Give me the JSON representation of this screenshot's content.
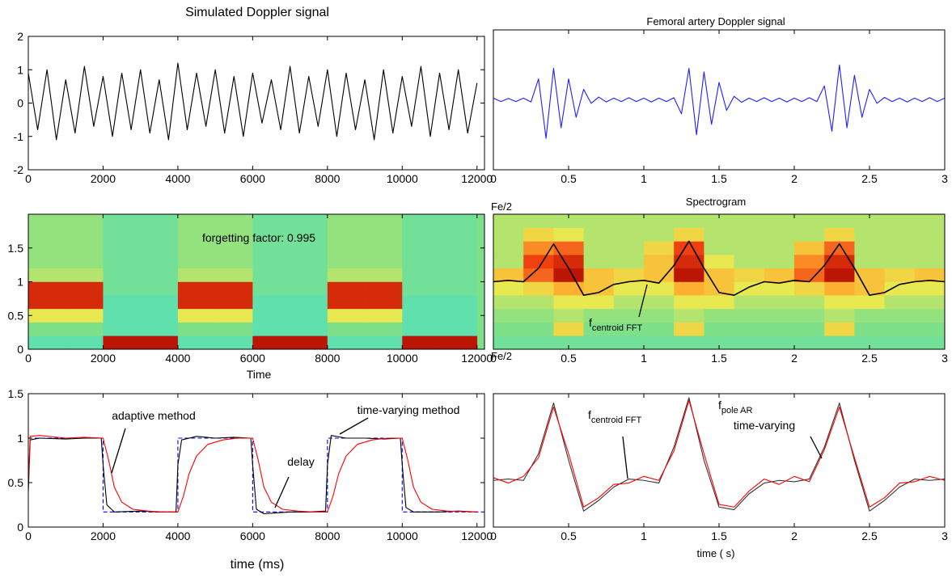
{
  "chart_data": [
    {
      "type": "line",
      "title": "Simulated Doppler signal",
      "xlim": [
        0,
        12200
      ],
      "xticks": [
        0,
        2000,
        4000,
        6000,
        8000,
        10000,
        12000
      ],
      "ylim": [
        -2,
        2
      ],
      "yticks": [
        -2,
        -1,
        0,
        1,
        2
      ],
      "series": [
        {
          "color": "#000000",
          "x": [
            0,
            250,
            500,
            750,
            1000,
            1250,
            1500,
            1750,
            2000,
            2250,
            2500,
            2750,
            3000,
            3250,
            3500,
            3750,
            4000,
            4250,
            4500,
            4750,
            5000,
            5250,
            5500,
            5750,
            6000,
            6250,
            6500,
            6750,
            7000,
            7250,
            7500,
            7750,
            8000,
            8250,
            8500,
            8750,
            9000,
            9250,
            9500,
            9750,
            10000,
            10250,
            10500,
            10750,
            11000,
            11250,
            11500,
            11750,
            12000
          ],
          "values": [
            0.9,
            -0.8,
            1.0,
            -1.1,
            0.7,
            -0.9,
            1.1,
            -0.7,
            0.8,
            -1.0,
            0.9,
            -0.8,
            1.0,
            -0.9,
            0.7,
            -1.1,
            1.2,
            -0.8,
            0.9,
            -0.7,
            1.0,
            -0.9,
            0.8,
            -1.0,
            0.9,
            -0.6,
            0.7,
            -0.8,
            1.1,
            -0.9,
            0.8,
            -0.7,
            1.0,
            -1.0,
            0.9,
            -0.8,
            0.7,
            -1.1,
            1.0,
            -0.9,
            0.8,
            -0.7,
            1.1,
            -1.0,
            0.9,
            -0.8,
            1.0,
            -0.9,
            0.6
          ]
        }
      ]
    },
    {
      "type": "line",
      "title": "Femoral artery Doppler signal",
      "xlim": [
        0,
        3
      ],
      "xticks": [
        0,
        0.5,
        1,
        1.5,
        2,
        2.5,
        3
      ],
      "ylim": [
        -2,
        2
      ],
      "series": [
        {
          "color": "#1f1fff",
          "x": [
            0,
            0.05,
            0.1,
            0.15,
            0.2,
            0.25,
            0.3,
            0.35,
            0.4,
            0.45,
            0.5,
            0.55,
            0.6,
            0.65,
            0.7,
            0.75,
            0.8,
            0.85,
            0.9,
            0.95,
            1,
            1.05,
            1.1,
            1.15,
            1.2,
            1.25,
            1.3,
            1.35,
            1.4,
            1.45,
            1.5,
            1.55,
            1.6,
            1.65,
            1.7,
            1.75,
            1.8,
            1.85,
            1.9,
            1.95,
            2,
            2.05,
            2.1,
            2.15,
            2.2,
            2.25,
            2.3,
            2.35,
            2.4,
            2.45,
            2.5,
            2.55,
            2.6,
            2.65,
            2.7,
            2.75,
            2.8,
            2.85,
            2.9,
            2.95,
            3
          ],
          "values": [
            0.05,
            -0.05,
            0.04,
            -0.05,
            0.05,
            -0.06,
            0.6,
            -1.1,
            0.9,
            -0.8,
            0.6,
            -0.5,
            0.3,
            -0.1,
            0.08,
            -0.06,
            0.05,
            -0.05,
            0.06,
            -0.05,
            0.05,
            -0.06,
            0.05,
            -0.05,
            0.06,
            -0.4,
            0.9,
            -1.0,
            0.8,
            -0.7,
            0.5,
            -0.3,
            0.1,
            -0.07,
            0.05,
            -0.05,
            0.06,
            -0.05,
            0.05,
            -0.06,
            0.05,
            -0.05,
            0.06,
            -0.05,
            0.4,
            -0.9,
            1.0,
            -0.8,
            0.7,
            -0.5,
            0.3,
            -0.1,
            0.07,
            -0.05,
            0.05,
            -0.06,
            0.05,
            -0.05,
            0.06,
            -0.05,
            0.05
          ]
        }
      ]
    },
    {
      "type": "heatmap",
      "xlabel": "Time",
      "xlim": [
        0,
        12200
      ],
      "xticks": [
        0,
        2000,
        4000,
        6000,
        8000,
        10000,
        12000
      ],
      "ylim": [
        0,
        2
      ],
      "yticks": [
        0,
        0.5,
        1,
        1.5
      ],
      "zlim": [
        0,
        1
      ],
      "annotations": [
        "forgetting factor: 0.995"
      ],
      "x_edges": [
        0,
        1000,
        2000,
        3000,
        4000,
        5000,
        6000,
        7000,
        8000,
        9000,
        10000,
        11000,
        12000
      ],
      "y_edges": [
        0,
        0.2,
        0.4,
        0.6,
        0.8,
        1.0,
        1.2,
        1.4,
        1.6,
        1.8,
        2.0
      ],
      "z": [
        [
          0.35,
          0.35,
          0.9,
          0.9,
          0.35,
          0.35,
          0.9,
          0.9,
          0.35,
          0.35,
          0.9,
          0.9
        ],
        [
          0.4,
          0.4,
          0.35,
          0.35,
          0.4,
          0.4,
          0.35,
          0.35,
          0.4,
          0.4,
          0.35,
          0.35
        ],
        [
          0.5,
          0.5,
          0.35,
          0.35,
          0.5,
          0.5,
          0.35,
          0.35,
          0.5,
          0.5,
          0.35,
          0.35
        ],
        [
          0.85,
          0.85,
          0.35,
          0.35,
          0.85,
          0.85,
          0.35,
          0.35,
          0.85,
          0.85,
          0.35,
          0.35
        ],
        [
          0.85,
          0.85,
          0.38,
          0.38,
          0.85,
          0.85,
          0.38,
          0.38,
          0.85,
          0.85,
          0.38,
          0.38
        ],
        [
          0.45,
          0.45,
          0.38,
          0.38,
          0.45,
          0.45,
          0.38,
          0.38,
          0.45,
          0.45,
          0.38,
          0.38
        ],
        [
          0.42,
          0.42,
          0.38,
          0.38,
          0.42,
          0.42,
          0.38,
          0.38,
          0.42,
          0.42,
          0.38,
          0.38
        ],
        [
          0.42,
          0.42,
          0.38,
          0.38,
          0.42,
          0.42,
          0.38,
          0.38,
          0.42,
          0.42,
          0.38,
          0.38
        ],
        [
          0.42,
          0.42,
          0.38,
          0.38,
          0.42,
          0.42,
          0.38,
          0.38,
          0.42,
          0.42,
          0.38,
          0.38
        ],
        [
          0.42,
          0.42,
          0.38,
          0.38,
          0.42,
          0.42,
          0.38,
          0.38,
          0.42,
          0.42,
          0.38,
          0.38
        ]
      ]
    },
    {
      "type": "heatmap",
      "title": "Spectrogram",
      "ylabel_top": "Fe/2",
      "ylabel_bottom": "Fe/2",
      "xlim": [
        0,
        3
      ],
      "xticks": [
        0,
        0.5,
        1,
        1.5,
        2,
        2.5,
        3
      ],
      "ylim": [
        0,
        1
      ],
      "zlim": [
        0,
        1
      ],
      "annotations": [
        {
          "text": "f",
          "sub": "centroid FFT"
        }
      ],
      "x_edges": [
        0,
        0.2,
        0.4,
        0.6,
        0.8,
        1.0,
        1.2,
        1.4,
        1.6,
        1.8,
        2.0,
        2.2,
        2.4,
        2.6,
        2.8,
        3.0
      ],
      "y_edges": [
        0,
        0.1,
        0.2,
        0.3,
        0.4,
        0.5,
        0.6,
        0.7,
        0.8,
        0.9,
        1.0
      ],
      "z": [
        [
          0.38,
          0.38,
          0.38,
          0.38,
          0.38,
          0.38,
          0.38,
          0.38,
          0.38,
          0.38,
          0.38,
          0.38,
          0.38,
          0.38,
          0.38
        ],
        [
          0.4,
          0.4,
          0.55,
          0.4,
          0.4,
          0.4,
          0.55,
          0.4,
          0.4,
          0.4,
          0.4,
          0.55,
          0.4,
          0.4,
          0.4
        ],
        [
          0.42,
          0.42,
          0.45,
          0.42,
          0.42,
          0.42,
          0.45,
          0.42,
          0.42,
          0.42,
          0.42,
          0.45,
          0.42,
          0.42,
          0.42
        ],
        [
          0.45,
          0.45,
          0.5,
          0.5,
          0.45,
          0.45,
          0.5,
          0.5,
          0.45,
          0.45,
          0.45,
          0.5,
          0.5,
          0.45,
          0.45
        ],
        [
          0.5,
          0.55,
          0.65,
          0.6,
          0.5,
          0.5,
          0.65,
          0.6,
          0.5,
          0.5,
          0.55,
          0.65,
          0.6,
          0.5,
          0.5
        ],
        [
          0.6,
          0.75,
          0.9,
          0.6,
          0.55,
          0.6,
          0.9,
          0.6,
          0.55,
          0.6,
          0.75,
          0.9,
          0.6,
          0.55,
          0.6
        ],
        [
          0.45,
          0.8,
          0.85,
          0.45,
          0.45,
          0.6,
          0.85,
          0.5,
          0.45,
          0.45,
          0.7,
          0.85,
          0.45,
          0.45,
          0.45
        ],
        [
          0.45,
          0.7,
          0.75,
          0.45,
          0.45,
          0.55,
          0.8,
          0.45,
          0.45,
          0.45,
          0.6,
          0.75,
          0.45,
          0.45,
          0.45
        ],
        [
          0.45,
          0.55,
          0.5,
          0.45,
          0.45,
          0.45,
          0.55,
          0.45,
          0.45,
          0.45,
          0.45,
          0.55,
          0.45,
          0.45,
          0.45
        ],
        [
          0.45,
          0.45,
          0.45,
          0.45,
          0.45,
          0.45,
          0.45,
          0.45,
          0.45,
          0.45,
          0.45,
          0.45,
          0.45,
          0.45,
          0.45
        ]
      ],
      "series": [
        {
          "color": "#000000",
          "x": [
            0,
            0.1,
            0.2,
            0.3,
            0.4,
            0.5,
            0.6,
            0.7,
            0.8,
            0.9,
            1.0,
            1.1,
            1.2,
            1.3,
            1.4,
            1.5,
            1.6,
            1.7,
            1.8,
            1.9,
            2.0,
            2.1,
            2.2,
            2.3,
            2.4,
            2.5,
            2.6,
            2.7,
            2.8,
            2.9,
            3.0
          ],
          "values": [
            0.5,
            0.51,
            0.5,
            0.6,
            0.78,
            0.6,
            0.4,
            0.42,
            0.48,
            0.5,
            0.51,
            0.49,
            0.62,
            0.8,
            0.6,
            0.42,
            0.4,
            0.46,
            0.5,
            0.49,
            0.51,
            0.5,
            0.62,
            0.78,
            0.6,
            0.4,
            0.42,
            0.48,
            0.5,
            0.51,
            0.5
          ]
        }
      ]
    },
    {
      "type": "line",
      "xlabel": "time (ms)",
      "xlim": [
        0,
        12200
      ],
      "xticks": [
        0,
        2000,
        4000,
        6000,
        8000,
        10000,
        12000
      ],
      "ylim": [
        0,
        1.5
      ],
      "yticks": [
        0,
        0.5,
        1,
        1.5
      ],
      "annotations": [
        "adaptive method",
        "delay",
        "time-varying method"
      ],
      "series": [
        {
          "color": "#0000ff",
          "dash": true,
          "x": [
            0,
            2000,
            2000,
            4000,
            4000,
            6000,
            6000,
            8000,
            8000,
            10000,
            10000,
            12200
          ],
          "values": [
            1,
            1,
            0.17,
            0.17,
            1,
            1,
            0.17,
            0.17,
            1,
            1,
            0.17,
            0.17
          ]
        },
        {
          "color": "#000000",
          "x": [
            0,
            50,
            300,
            1000,
            1500,
            1950,
            2000,
            2100,
            2300,
            3000,
            3500,
            3950,
            4000,
            4100,
            4500,
            5000,
            5500,
            5950,
            6000,
            6100,
            6300,
            7000,
            7500,
            7950,
            8000,
            8100,
            8500,
            9000,
            9500,
            9950,
            10000,
            10100,
            10300,
            11000,
            11500,
            12000
          ],
          "values": [
            0.4,
            0.98,
            1.0,
            0.99,
            1.0,
            1.0,
            0.7,
            0.25,
            0.17,
            0.18,
            0.17,
            0.17,
            0.7,
            0.98,
            1.02,
            1.0,
            1.01,
            1.0,
            0.7,
            0.2,
            0.15,
            0.17,
            0.17,
            0.18,
            0.7,
            1.03,
            1.0,
            1.0,
            0.99,
            1.0,
            0.7,
            0.22,
            0.17,
            0.17,
            0.18,
            0.17
          ]
        },
        {
          "color": "#ff0000",
          "x": [
            0,
            50,
            300,
            1000,
            1500,
            2000,
            2150,
            2300,
            2500,
            2800,
            3200,
            3600,
            4000,
            4150,
            4300,
            4500,
            4800,
            5200,
            5600,
            6000,
            6150,
            6300,
            6500,
            6800,
            7200,
            7600,
            8000,
            8150,
            8300,
            8500,
            8800,
            9200,
            9600,
            10000,
            10150,
            10300,
            10500,
            10800,
            11200,
            12000
          ],
          "values": [
            0.5,
            1.02,
            1.03,
            1.0,
            1.01,
            1.0,
            0.75,
            0.45,
            0.28,
            0.2,
            0.18,
            0.17,
            0.17,
            0.35,
            0.6,
            0.8,
            0.93,
            0.98,
            1.0,
            1.0,
            0.75,
            0.45,
            0.28,
            0.2,
            0.18,
            0.17,
            0.17,
            0.35,
            0.6,
            0.8,
            0.93,
            0.98,
            1.0,
            1.0,
            0.75,
            0.45,
            0.28,
            0.2,
            0.18,
            0.17
          ]
        }
      ]
    },
    {
      "type": "line",
      "xlabel": "time ( s)",
      "xlim": [
        0,
        3
      ],
      "xticks": [
        0,
        0.5,
        1,
        1.5,
        2,
        2.5,
        3
      ],
      "ylim": [
        0,
        1
      ],
      "annotations": [
        {
          "text": "f",
          "sub": "centroid FFT"
        },
        {
          "text": "f",
          "sub": "pole AR"
        },
        "time-varying"
      ],
      "series": [
        {
          "color": "#333333",
          "x": [
            0,
            0.1,
            0.2,
            0.3,
            0.4,
            0.5,
            0.6,
            0.7,
            0.8,
            0.9,
            1.0,
            1.1,
            1.2,
            1.3,
            1.4,
            1.5,
            1.6,
            1.7,
            1.8,
            1.9,
            2.0,
            2.1,
            2.2,
            2.3,
            2.4,
            2.5,
            2.6,
            2.7,
            2.8,
            2.9,
            3.0
          ],
          "values": [
            0.35,
            0.36,
            0.35,
            0.55,
            0.93,
            0.5,
            0.12,
            0.2,
            0.3,
            0.36,
            0.35,
            0.33,
            0.6,
            0.97,
            0.5,
            0.15,
            0.13,
            0.25,
            0.33,
            0.35,
            0.34,
            0.36,
            0.6,
            0.93,
            0.5,
            0.12,
            0.2,
            0.3,
            0.36,
            0.35,
            0.36
          ]
        },
        {
          "color": "#ff0000",
          "x": [
            0,
            0.1,
            0.2,
            0.3,
            0.4,
            0.5,
            0.6,
            0.7,
            0.8,
            0.9,
            1.0,
            1.1,
            1.2,
            1.3,
            1.4,
            1.5,
            1.6,
            1.7,
            1.8,
            1.9,
            2.0,
            2.1,
            2.2,
            2.3,
            2.4,
            2.5,
            2.6,
            2.7,
            2.8,
            2.9,
            3.0
          ],
          "values": [
            0.37,
            0.33,
            0.38,
            0.52,
            0.9,
            0.55,
            0.15,
            0.22,
            0.32,
            0.33,
            0.38,
            0.35,
            0.57,
            0.95,
            0.55,
            0.17,
            0.15,
            0.27,
            0.36,
            0.32,
            0.38,
            0.34,
            0.58,
            0.9,
            0.52,
            0.15,
            0.22,
            0.33,
            0.34,
            0.38,
            0.35
          ]
        }
      ]
    }
  ]
}
